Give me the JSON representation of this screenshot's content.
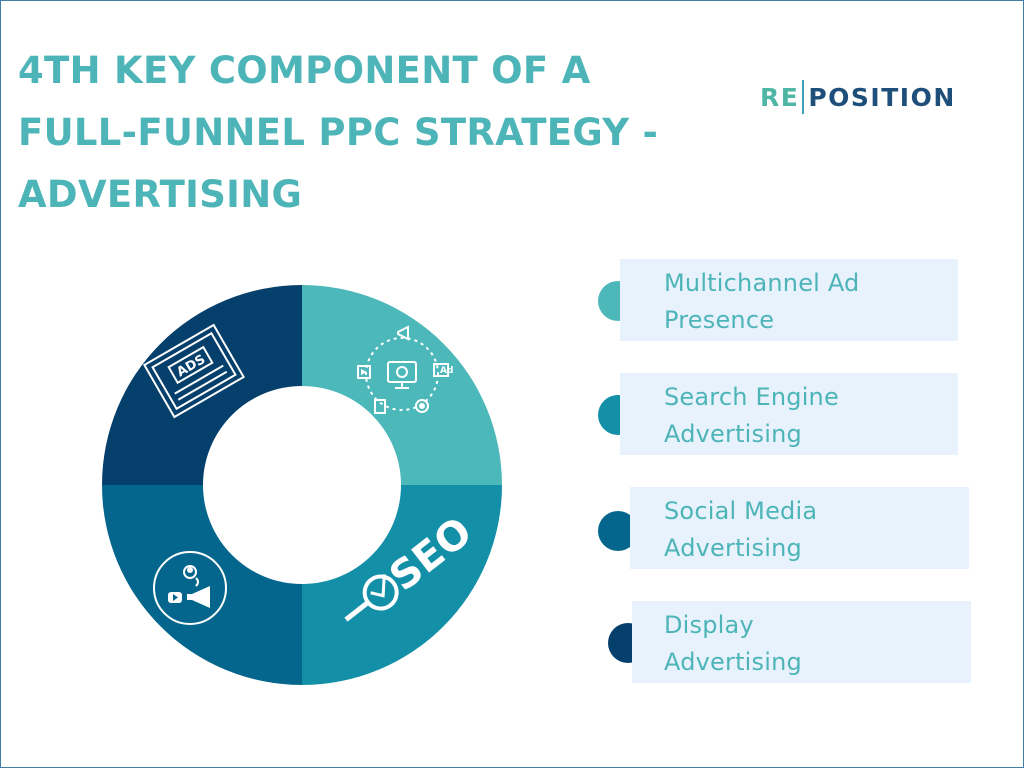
{
  "title": {
    "line1": "4TH KEY COMPONENT OF A",
    "line2": "FULL-FUNNEL PPC STRATEGY -",
    "line3": "ADVERTISING"
  },
  "logo": {
    "part1": "RE",
    "part2": "POSITION",
    "color1": "#4fb6a6",
    "color2": "#1d4f7a"
  },
  "donut": {
    "segments": [
      {
        "name": "multichannel",
        "icon": "marketing-network-icon",
        "color": "#4db8ba",
        "share": 0.25
      },
      {
        "name": "search-engine",
        "icon": "seo-magnifier-icon",
        "color": "#138fa7",
        "share": 0.25
      },
      {
        "name": "social-media",
        "icon": "social-megaphone-icon",
        "color": "#05668d",
        "share": 0.25
      },
      {
        "name": "display",
        "icon": "ads-browser-icon",
        "color": "#053f6b",
        "share": 0.25
      }
    ]
  },
  "list": [
    {
      "line1": "Multichannel Ad",
      "line2": "Presence",
      "tab_color": "#4db8ba"
    },
    {
      "line1": "Search Engine",
      "line2": "Advertising",
      "tab_color": "#138fa7"
    },
    {
      "line1": "Social Media",
      "line2": "Advertising",
      "tab_color": "#05668d"
    },
    {
      "line1": "Display",
      "line2": "Advertising",
      "tab_color": "#053f6b"
    }
  ],
  "ads_label": "ADS",
  "seo_label": "SEO"
}
